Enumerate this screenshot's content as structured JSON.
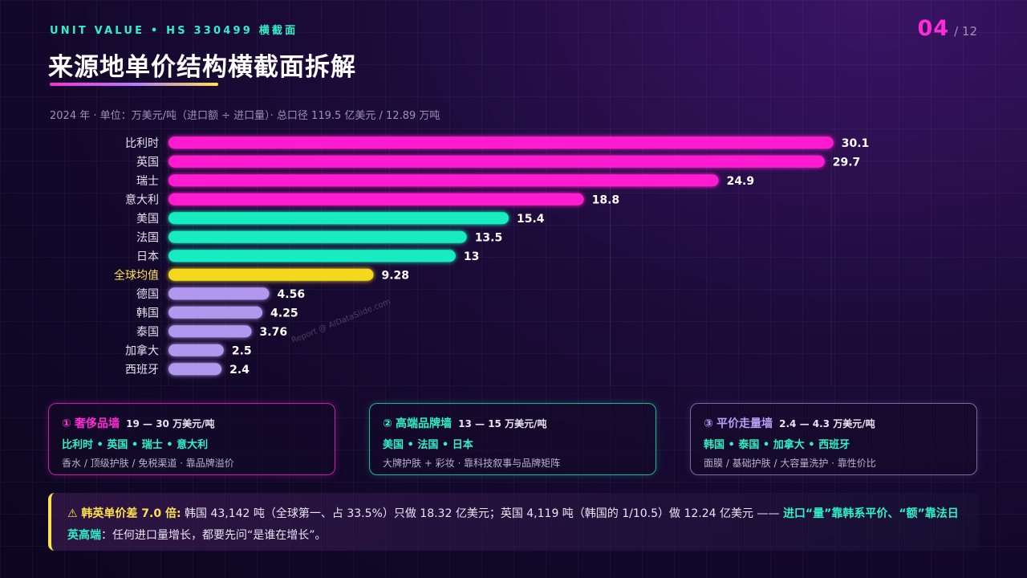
{
  "header": {
    "kicker": "UNIT VALUE • HS 330499 横截面",
    "page_current": "04",
    "page_total": "/ 12",
    "title": "来源地单价结构横截面拆解",
    "subtitle": "2024 年 · 单位：万美元/吨（进口额 ÷ 进口量）· 总口径 119.5 亿美元 / 12.89 万吨"
  },
  "watermark": "Report @ AIDataSlide.com",
  "chart_data": {
    "type": "bar",
    "orientation": "horizontal",
    "unit": "万美元/吨",
    "categories": [
      "比利时",
      "英国",
      "瑞士",
      "意大利",
      "美国",
      "法国",
      "日本",
      "全球均值",
      "德国",
      "韩国",
      "泰国",
      "加拿大",
      "西班牙"
    ],
    "values": [
      30.1,
      29.7,
      24.9,
      18.8,
      15.4,
      13.5,
      13,
      9.28,
      4.56,
      4.25,
      3.76,
      2.5,
      2.4
    ],
    "value_labels": [
      "30.1",
      "29.7",
      "24.9",
      "18.8",
      "15.4",
      "13.5",
      "13",
      "9.28",
      "4.56",
      "4.25",
      "3.76",
      "2.5",
      "2.4"
    ],
    "groups": [
      "luxury",
      "luxury",
      "luxury",
      "luxury",
      "premium",
      "premium",
      "premium",
      "average",
      "value",
      "value",
      "value",
      "value",
      "value"
    ],
    "xlim": [
      0,
      30
    ],
    "grid": true,
    "colors": {
      "luxury": "#ff1fd0",
      "premium": "#18ecc0",
      "average": "#f4d81c",
      "value": "#b297ee",
      "average_label": "#ffe14a"
    }
  },
  "cards": [
    {
      "num": "①",
      "name": "奢侈品墙",
      "range": "19 — 30 万美元/吨",
      "countries": "比利时 • 英国 • 瑞士 • 意大利",
      "desc": "香水 / 顶级护肤 / 免税渠道 · 靠品牌溢价"
    },
    {
      "num": "②",
      "name": "高端品牌墙",
      "range": "13 — 15 万美元/吨",
      "countries": "美国 • 法国 • 日本",
      "desc": "大牌护肤 + 彩妆 · 靠科技叙事与品牌矩阵"
    },
    {
      "num": "③",
      "name": "平价走量墙",
      "range": "2.4 — 4.3 万美元/吨",
      "countries": "韩国 • 泰国 • 加拿大 • 西班牙",
      "desc": "面膜 / 基础护肤 / 大容量洗护 · 靠性价比"
    }
  ],
  "insight": {
    "lead": "⚠ 韩英单价差 7.0 倍:",
    "body": " 韩国 43,142 吨（全球第一、占 33.5%）只做 18.32 亿美元；英国 4,119 吨（韩国的 1/10.5）做 12.24 亿美元 —— ",
    "highlight": "进口“量”靠韩系平价、“额”靠法日英高端",
    "tail": "：任何进口量增长，都要先问“是谁在增长”。"
  }
}
